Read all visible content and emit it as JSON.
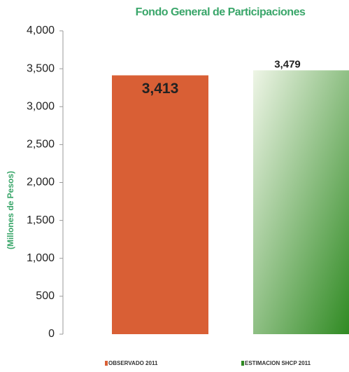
{
  "chart_data": {
    "type": "bar",
    "title": "Fondo General de Participaciones",
    "y_label": "(Millones de Pesos)",
    "categories": [
      null
    ],
    "series": [
      {
        "name": "OBSERVADO 2011",
        "color": "#d95f35",
        "values": [
          3413
        ],
        "value_labels": [
          "3,413"
        ]
      },
      {
        "name": "ESTIMACION SHCP 2011",
        "color": "#2f8a22",
        "values": [
          3479
        ],
        "value_labels": [
          "3,479"
        ]
      }
    ],
    "ylim": [
      0,
      4000
    ],
    "yticks": [
      {
        "value": 0,
        "label": "0"
      },
      {
        "value": 500,
        "label": "500"
      },
      {
        "value": 1000,
        "label": "1,000"
      },
      {
        "value": 1500,
        "label": "1,500"
      },
      {
        "value": 2000,
        "label": "2,000"
      },
      {
        "value": 2500,
        "label": "2,500"
      },
      {
        "value": 3000,
        "label": "3,000"
      },
      {
        "value": 3500,
        "label": "3,500"
      },
      {
        "value": 4000,
        "label": "4,000"
      }
    ],
    "grid": false
  }
}
